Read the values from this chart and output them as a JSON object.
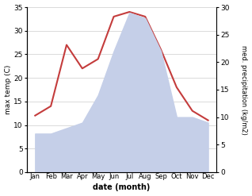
{
  "months": [
    "Jan",
    "Feb",
    "Mar",
    "Apr",
    "May",
    "Jun",
    "Jul",
    "Aug",
    "Sep",
    "Oct",
    "Nov",
    "Dec"
  ],
  "temp": [
    12,
    14,
    27,
    22,
    24,
    33,
    34,
    33,
    26,
    18,
    13,
    11
  ],
  "precip": [
    7,
    7,
    8,
    9,
    14,
    22,
    29,
    28,
    22,
    10,
    10,
    9
  ],
  "temp_color": "#c43c3c",
  "precip_fill_color": "#c5cfe8",
  "temp_ylim": [
    0,
    35
  ],
  "precip_ylim": [
    0,
    30
  ],
  "temp_yticks": [
    0,
    5,
    10,
    15,
    20,
    25,
    30,
    35
  ],
  "precip_yticks": [
    0,
    5,
    10,
    15,
    20,
    25,
    30
  ],
  "xlabel": "date (month)",
  "ylabel_left": "max temp (C)",
  "ylabel_right": "med. precipitation (kg/m2)",
  "bg_color": "#ffffff",
  "grid_color": "#cccccc"
}
